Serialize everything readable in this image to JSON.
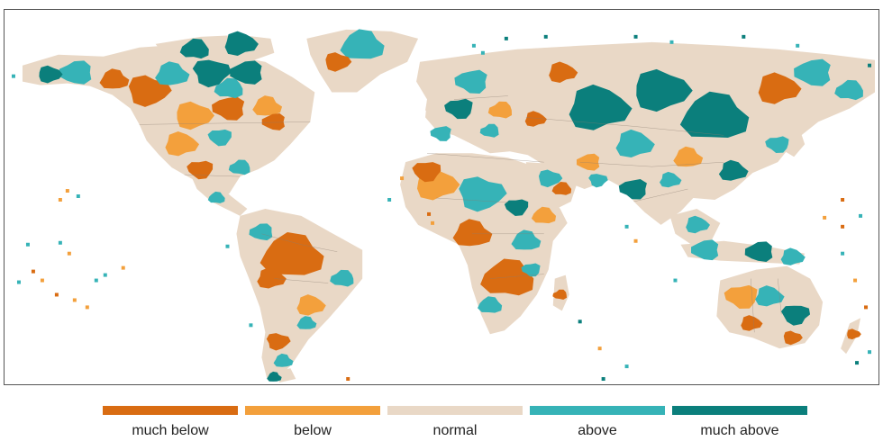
{
  "map": {
    "type": "categorical-world-map",
    "projection": "equirectangular",
    "legend": {
      "position": "bottom",
      "items": [
        {
          "key": "much_below",
          "label": "much below",
          "color": "#d96c12"
        },
        {
          "key": "below",
          "label": "below",
          "color": "#f3a03c"
        },
        {
          "key": "normal",
          "label": "normal",
          "color": "#e9d8c6"
        },
        {
          "key": "above",
          "label": "above",
          "color": "#36b3b7"
        },
        {
          "key": "much_above",
          "label": "much above",
          "color": "#0b7f7c"
        }
      ]
    },
    "colors": {
      "ocean": "#ffffff",
      "border": "#8a7c70",
      "frame": "#555555"
    }
  }
}
